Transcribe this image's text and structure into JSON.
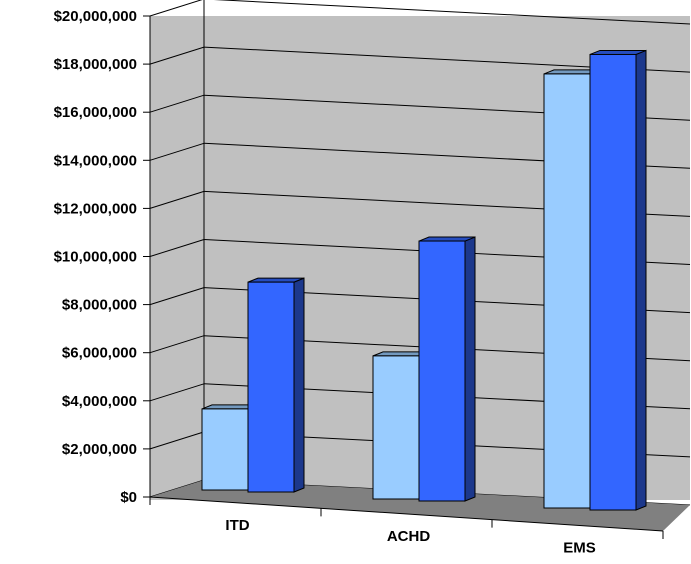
{
  "chart_data": {
    "type": "bar",
    "three_d": true,
    "categories": [
      "ITD",
      "ACHD",
      "EMS"
    ],
    "series": [
      {
        "values": [
          3400000,
          6000000,
          18200000
        ],
        "color": "#99ccff"
      },
      {
        "values": [
          8800000,
          10900000,
          19100000
        ],
        "color": "#3366ff"
      }
    ],
    "ylim": [
      0,
      20000000
    ],
    "yticks": [
      "$0",
      "$2,000,000",
      "$4,000,000",
      "$6,000,000",
      "$8,000,000",
      "$10,000,000",
      "$12,000,000",
      "$14,000,000",
      "$16,000,000",
      "$18,000,000",
      "$20,000,000"
    ],
    "grid": true,
    "legend": "none",
    "title": "",
    "xlabel": "",
    "ylabel": ""
  }
}
